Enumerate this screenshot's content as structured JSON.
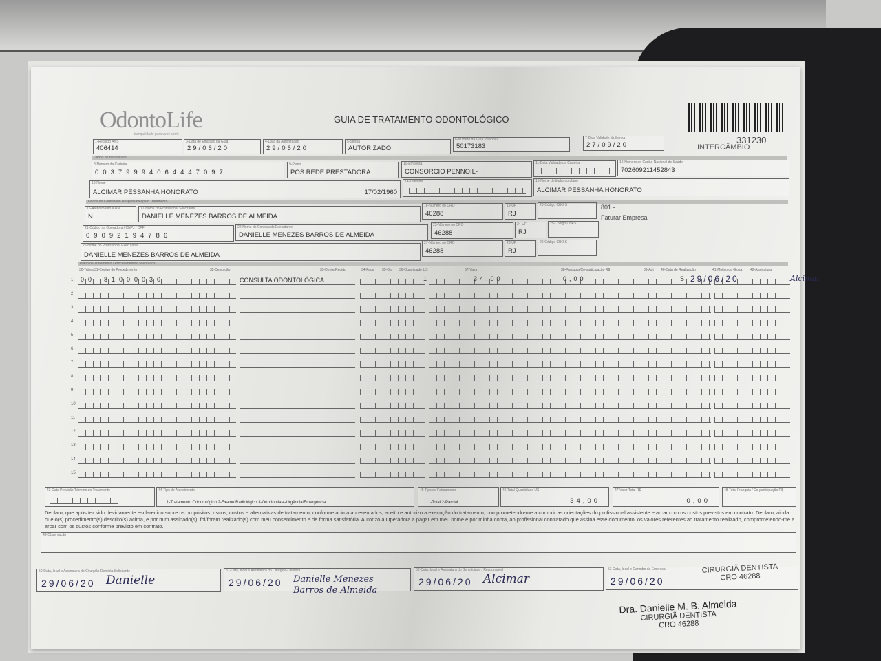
{
  "logo": {
    "brand": "OdontoLife",
    "tagline": "tranquilidade para você sorrir"
  },
  "title": "GUIA DE TRATAMENTO ODONTOLÓGICO",
  "header_code": {
    "number": "331230",
    "label": "INTERCÂMBIO"
  },
  "fields": {
    "registro_ans": {
      "label": "1-Registro ANS",
      "value": "406414"
    },
    "data_emissao": {
      "label": "3-Data de Emissão da Guia",
      "value": "29/06/20"
    },
    "data_autorizacao": {
      "label": "4-Data da Autorização",
      "value": "29/06/20"
    },
    "senha": {
      "label": "5-Senha",
      "value": "AUTORIZADO"
    },
    "guia_principal": {
      "label": "6-Número da Guia Principal",
      "value": "50173183"
    },
    "validade_senha": {
      "label": "7-Data Validade da Senha",
      "value": "27/09/20"
    },
    "numero_carteira": {
      "label": "8-Número da Carteira",
      "value": "00379994064447097"
    },
    "plano": {
      "label": "9-Plano",
      "value": "POS REDE PRESTADORA"
    },
    "empresa": {
      "label": "10-Empresa",
      "value": "CONSORCIO PENNOIL-"
    },
    "validade_carteira": {
      "label": "11-Data Validade da Carteira",
      "value": ""
    },
    "cns": {
      "label": "12-Número do Cartão Nacional de Saúde",
      "value": "702609211452843"
    },
    "nome": {
      "label": "13-Nome",
      "value": "ALCIMAR PESSANHA HONORATO",
      "birth": "17/02/1960"
    },
    "telefone": {
      "label": "14-Telefone",
      "value": ""
    },
    "titular": {
      "label": "15-Nome do titular do plano",
      "value": "ALCIMAR PESSANHA HONORATO"
    },
    "atendimento_rn": {
      "label": "16-Atendimento a RN",
      "value": "N"
    },
    "prof_solicitante": {
      "label": "17-Nome do Profissional Solicitante",
      "value": "DANIELLE MENEZES BARROS DE ALMEIDA"
    },
    "cro_18": {
      "label": "18-Número no CRO",
      "value": "46288"
    },
    "uf_19": {
      "label": "19-UF",
      "value": "RJ"
    },
    "cbo_20": {
      "label": "20-Código CBO S",
      "value": ""
    },
    "codigo_operadora": {
      "label": "21-Código na Operadora / CNPJ / CPF",
      "value": "09092194786"
    },
    "contratado_executante": {
      "label": "22-Nome do Contratado Executante",
      "value": "DANIELLE MENEZES BARROS DE ALMEIDA"
    },
    "cro_23": {
      "label": "23-Número no CRO",
      "value": "46288"
    },
    "uf_24": {
      "label": "24-UF",
      "value": "RJ"
    },
    "cnes": {
      "label": "25-Código CNES",
      "value": ""
    },
    "prof_executante": {
      "label": "26-Nome do Profissional Executante",
      "value": "DANIELLE MENEZES BARROS DE ALMEIDA"
    },
    "cro_27": {
      "label": "27-Número no CRO",
      "value": "46288"
    },
    "uf_28": {
      "label": "28-UF",
      "value": "RJ"
    },
    "cbo_29": {
      "label": "29-Código CBO S",
      "value": ""
    }
  },
  "side_note": {
    "line1": "801 -",
    "line2": "Faturar Empresa"
  },
  "sections": {
    "beneficiario": "Dados do Beneficiário",
    "contratado": "Dados do Contratado Responsável pelo Tratamento",
    "plano": "Plano de Tratamento / Procedimentos Solicitados"
  },
  "columns": [
    "30-Tabela",
    "31-Código do Procedimento",
    "32-Descrição",
    "33-Dente/Região",
    "34-Face",
    "35-Qtd",
    "36-Quantidade US",
    "37-Valor",
    "38-Franquia/Co-participação R$",
    "39-Aut",
    "40-Data de Realização",
    "41-Motivo da Glosa",
    "42-Assinatura"
  ],
  "procedures": [
    {
      "n": "1",
      "tabela": "00",
      "codigo": "81000030",
      "descricao": "CONSULTA ODONTOLÓGICA",
      "qtd": "1",
      "us": "34,00",
      "valor": "0,00",
      "aut": "S",
      "data": "29/06/20",
      "assinatura": "Alcimar"
    }
  ],
  "row_numbers": [
    "1",
    "2",
    "3",
    "4",
    "5",
    "6",
    "7",
    "8",
    "9",
    "10",
    "11",
    "12",
    "13",
    "14",
    "15"
  ],
  "totals": {
    "previsao": {
      "label": "43-Data Previsão Término do Tratamento",
      "value": ""
    },
    "tipo_atendimento": {
      "label": "44-Tipo de Atendimento",
      "options": "1-Tratamento Odontológico 2-Exame Radiológico 3-Ortodontia 4-Urgência/Emergência"
    },
    "tipo_faturamento": {
      "label": "45-Tipo de Faturamento",
      "options": "1-Total 2-Parcial"
    },
    "total_us": {
      "label": "46-Total Quantidade US",
      "value": "34,00"
    },
    "valor_total": {
      "label": "47-Valor Total R$",
      "value": "0,00"
    },
    "total_franquia": {
      "label": "48-Total Franquia / Co-participação R$",
      "value": ""
    }
  },
  "declaration": "Declaro, que após ter sido devidamente esclarecido sobre os propósitos, riscos, custos e alternativas de tratamento, conforme acima apresentados, aceito e autorizo a execução do tratamento, comprometendo-me a cumprir as orientações do profissional assistente e arcar com os custos previstos em contrato. Declaro, ainda que o(s) procedimento(s) descrito(s) acima, e por mim assinado(s), foi/foram realizado(s) com meu consentimento e de forma satisfatória. Autorizo a Operadora a pagar em meu nome e por minha conta, ao profissional contratado que assina esse documento, os valores referentes ao tratamento realizado, comprometendo-me a arcar com os custos conforme previsto em contrato.",
  "observacao": {
    "label": "49-Observação",
    "value": ""
  },
  "signatures": [
    {
      "label": "50-Data, local e Assinatura do Cirurgião-Dentista Solicitante",
      "date": "29/06/20",
      "sig": "Danielle"
    },
    {
      "label": "51-Data, local e Assinatura do Cirurgião-Dentista",
      "date": "29/06/20",
      "sig": "Danielle Menezes Barros de Almeida"
    },
    {
      "label": "52-Data, local e Assinatura do Beneficiário / Responsável",
      "date": "29/06/20",
      "sig": "Alcimar"
    },
    {
      "label": "53-Data, local e Carimbo da Empresa",
      "date": "29/06/20",
      "sig": ""
    }
  ],
  "stamp": {
    "name": "Dra. Danielle M. B. Almeida",
    "role": "CIRURGIÃ DENTISTA",
    "cro": "CRO 46288"
  }
}
